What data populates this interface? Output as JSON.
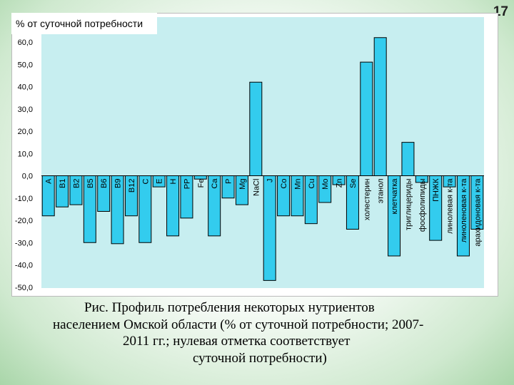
{
  "slide_number": "17",
  "caption": {
    "line1": "Рис. Профиль потребления некоторых нутриентов",
    "line2": "населением Омской области (% от суточной потребности; 2007-",
    "line3": "2011 гг.; нулевая отметка соответствует",
    "line4": "суточной потребности)"
  },
  "chart_data": {
    "type": "bar",
    "title": "% от суточной потребности",
    "xlabel": "",
    "ylabel": "",
    "ylim": [
      -50,
      65
    ],
    "yticks": [
      "60,0",
      "50,0",
      "40,0",
      "30,0",
      "20,0",
      "10,0",
      "0,0",
      "-10,0",
      "-20,0",
      "-30,0",
      "-40,0",
      "-50,0"
    ],
    "grid": false,
    "legend": "none",
    "bar_color": "#33CCEE",
    "plot_background": "#C7EEF0",
    "categories": [
      "A",
      "B1",
      "B2",
      "B5",
      "B6",
      "B9",
      "B12",
      "C",
      "E",
      "H",
      "PP",
      "Fe",
      "Ca",
      "P",
      "Mg",
      "NaCl",
      "J",
      "Co",
      "Mn",
      "Cu",
      "Mo",
      "Zn",
      "Se",
      "холестерин",
      "этанол",
      "клетчатка",
      "триглицериды",
      "фосфолипиды",
      "ПНЖК",
      "линолевая к-та",
      "линоленовая к-та",
      "арахидоновая к-та"
    ],
    "values": [
      -18,
      -14,
      -13,
      -30,
      -16,
      -30.5,
      -18,
      -30,
      -5,
      -27,
      -19,
      -1.5,
      -27,
      -10,
      -13,
      42,
      -47,
      -18,
      -18,
      -21.5,
      -12,
      -4,
      -24,
      51,
      62,
      -36,
      15,
      -3,
      -29,
      -5,
      -36,
      -24
    ]
  }
}
